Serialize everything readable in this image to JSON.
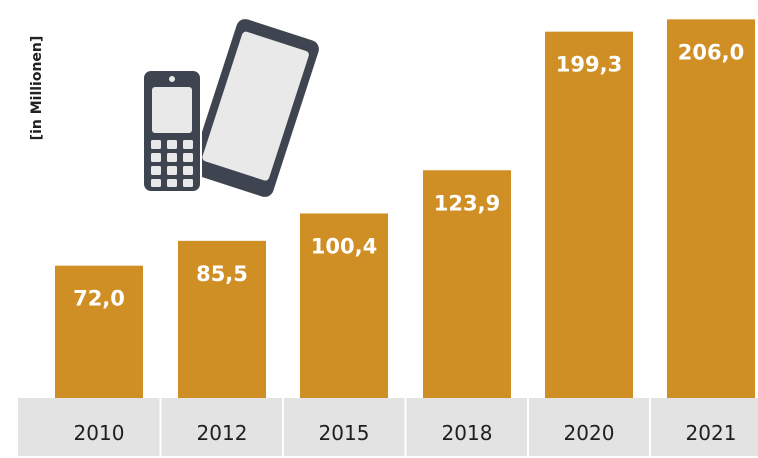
{
  "chart_data": {
    "type": "bar",
    "title": "",
    "xlabel": "",
    "ylabel": "[in Millionen]",
    "categories": [
      "2010",
      "2012",
      "2015",
      "2018",
      "2020",
      "2021"
    ],
    "values": [
      72.0,
      85.5,
      100.4,
      123.9,
      199.3,
      206.0
    ],
    "value_labels": [
      "72,0",
      "85,5",
      "100,4",
      "123,9",
      "199,3",
      "206,0"
    ],
    "ylim": [
      0,
      210
    ],
    "grid": false,
    "legend": "none",
    "bar_color": "#D08F25",
    "axis_band_color": "#E3E3E3",
    "icon": "mobile-phones-icon"
  }
}
